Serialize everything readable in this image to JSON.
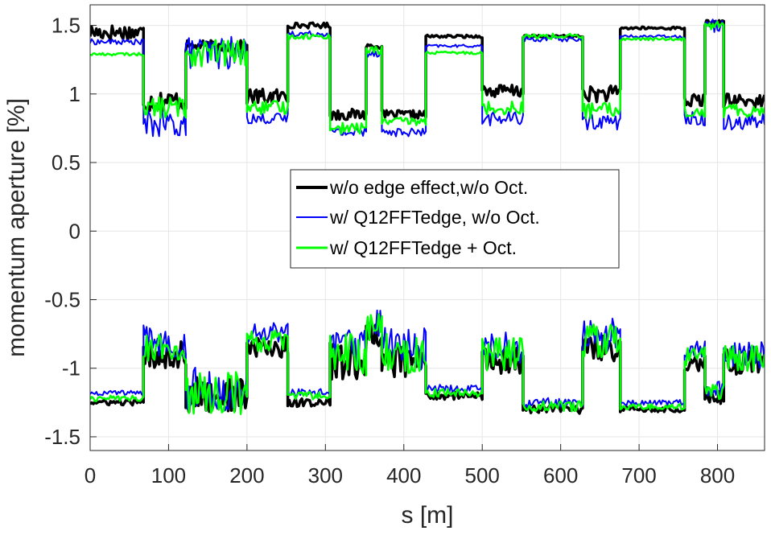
{
  "chart_data": {
    "type": "line",
    "title": "",
    "xlabel": "s [m]",
    "ylabel": "momentum aperture [%]",
    "xlim": [
      0,
      860
    ],
    "ylim": [
      -1.6,
      1.65
    ],
    "xticks": [
      0,
      100,
      200,
      300,
      400,
      500,
      600,
      700,
      800
    ],
    "yticks": [
      -1.5,
      -1,
      -0.5,
      0,
      0.5,
      1,
      1.5
    ],
    "xtick_labels": [
      "0",
      "100",
      "200",
      "300",
      "400",
      "500",
      "600",
      "700",
      "800"
    ],
    "ytick_labels": [
      "-1.5",
      "-1",
      "-0.5",
      "0",
      "0.5",
      "1",
      "1.5"
    ],
    "grid": true,
    "legend_position": "center",
    "segments": [
      [
        0,
        68
      ],
      [
        68,
        122
      ],
      [
        122,
        200
      ],
      [
        200,
        252
      ],
      [
        252,
        306
      ],
      [
        306,
        352
      ],
      [
        352,
        372
      ],
      [
        372,
        428
      ],
      [
        428,
        500
      ],
      [
        500,
        552
      ],
      [
        552,
        628
      ],
      [
        628,
        676
      ],
      [
        676,
        758
      ],
      [
        758,
        784
      ],
      [
        784,
        808
      ],
      [
        808,
        860
      ]
    ],
    "series": [
      {
        "name": "w/o edge effect,w/o Oct.",
        "color": "#000000",
        "upper": [
          1.45,
          0.95,
          1.35,
          0.98,
          1.5,
          0.85,
          1.35,
          0.85,
          1.42,
          1.02,
          1.42,
          1.0,
          1.48,
          0.95,
          1.52,
          0.95
        ],
        "lower": [
          -1.25,
          -0.9,
          -1.2,
          -0.85,
          -1.25,
          -0.95,
          -0.75,
          -0.95,
          -1.2,
          -0.95,
          -1.3,
          -0.85,
          -1.3,
          -0.95,
          -1.2,
          -0.95
        ],
        "upper_ripple": [
          0.06,
          0.08,
          0.04,
          0.06,
          0.02,
          0.04,
          0.02,
          0.03,
          0.01,
          0.05,
          0.01,
          0.06,
          0.01,
          0.05,
          0.02,
          0.05
        ],
        "lower_ripple": [
          0.02,
          0.1,
          0.14,
          0.08,
          0.03,
          0.14,
          0.1,
          0.14,
          0.03,
          0.1,
          0.03,
          0.1,
          0.02,
          0.08,
          0.06,
          0.1
        ]
      },
      {
        "name": "w/ Q12FFTedge, w/o Oct.",
        "color": "#0000ff",
        "upper": [
          1.38,
          0.78,
          1.3,
          0.82,
          1.44,
          0.72,
          1.3,
          0.72,
          1.35,
          0.82,
          1.4,
          0.8,
          1.42,
          0.82,
          1.5,
          0.8
        ],
        "lower": [
          -1.18,
          -0.8,
          -1.15,
          -0.75,
          -1.18,
          -0.85,
          -0.65,
          -0.85,
          -1.15,
          -0.85,
          -1.25,
          -0.75,
          -1.25,
          -0.85,
          -1.15,
          -0.9
        ],
        "upper_ripple": [
          0.02,
          0.1,
          0.12,
          0.04,
          0.02,
          0.04,
          0.03,
          0.03,
          0.01,
          0.05,
          0.02,
          0.06,
          0.01,
          0.05,
          0.05,
          0.06
        ],
        "lower_ripple": [
          0.02,
          0.12,
          0.16,
          0.08,
          0.03,
          0.16,
          0.12,
          0.16,
          0.03,
          0.12,
          0.04,
          0.12,
          0.02,
          0.08,
          0.06,
          0.1
        ]
      },
      {
        "name": "w/ Q12FFTedge + Oct.",
        "color": "#00ff00",
        "upper": [
          1.29,
          0.9,
          1.3,
          0.9,
          1.42,
          0.75,
          1.32,
          0.8,
          1.3,
          0.9,
          1.42,
          0.88,
          1.4,
          0.88,
          1.5,
          0.88
        ],
        "lower": [
          -1.22,
          -0.85,
          -1.18,
          -0.8,
          -1.2,
          -0.9,
          -0.7,
          -0.9,
          -1.18,
          -0.9,
          -1.28,
          -0.8,
          -1.28,
          -0.9,
          -1.18,
          -0.92
        ],
        "upper_ripple": [
          0.01,
          0.08,
          0.1,
          0.05,
          0.02,
          0.04,
          0.03,
          0.03,
          0.01,
          0.05,
          0.02,
          0.06,
          0.01,
          0.05,
          0.03,
          0.05
        ],
        "lower_ripple": [
          0.02,
          0.1,
          0.16,
          0.08,
          0.03,
          0.16,
          0.1,
          0.16,
          0.03,
          0.12,
          0.04,
          0.12,
          0.02,
          0.08,
          0.06,
          0.1
        ]
      }
    ]
  }
}
